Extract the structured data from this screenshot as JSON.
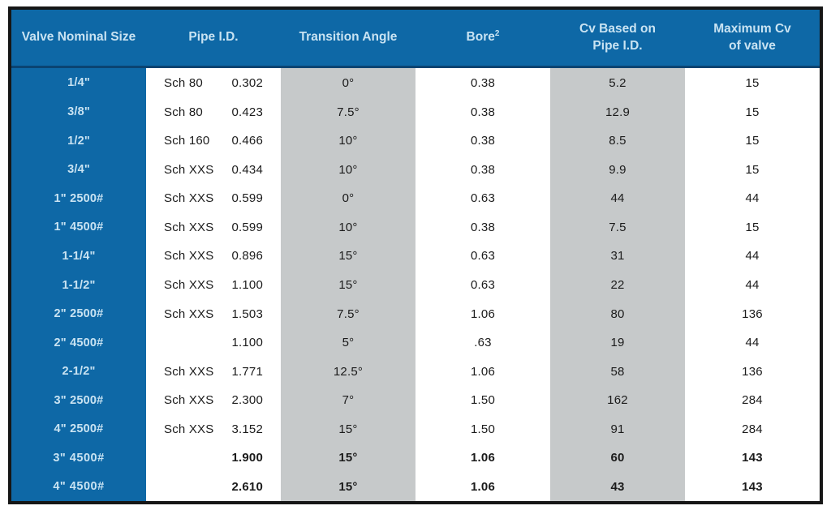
{
  "colors": {
    "blue": "#0e68a6",
    "blue_dark": "#0a4472",
    "header_text": "#c9e3f2",
    "gray": "#c6c9ca",
    "ink": "#1b1b1b",
    "border_black": "#161616",
    "page_bg": "#ffffff"
  },
  "table": {
    "headers": {
      "valve_nominal_size": "Valve Nominal Size",
      "pipe_id": "Pipe I.D.",
      "transition_angle": "Transition Angle",
      "bore_label": "Bore",
      "bore_sup": "2",
      "cv_based_line1": "Cv Based on",
      "cv_based_line2": "Pipe I.D.",
      "max_cv_line1": "Maximum Cv",
      "max_cv_line2": "of valve"
    },
    "rows": [
      {
        "size": "1/4\"",
        "sched": "Sch 80",
        "pipe_id": "0.302",
        "angle": "0°",
        "bore": "0.38",
        "cv_pipe": "5.2",
        "max_cv": "15"
      },
      {
        "size": "3/8\"",
        "sched": "Sch 80",
        "pipe_id": "0.423",
        "angle": "7.5°",
        "bore": "0.38",
        "cv_pipe": "12.9",
        "max_cv": "15"
      },
      {
        "size": "1/2\"",
        "sched": "Sch 160",
        "pipe_id": "0.466",
        "angle": "10°",
        "bore": "0.38",
        "cv_pipe": "8.5",
        "max_cv": "15"
      },
      {
        "size": "3/4\"",
        "sched": "Sch XXS",
        "pipe_id": "0.434",
        "angle": "10°",
        "bore": "0.38",
        "cv_pipe": "9.9",
        "max_cv": "15"
      },
      {
        "size": "1\" 2500#",
        "sched": "Sch XXS",
        "pipe_id": "0.599",
        "angle": "0°",
        "bore": "0.63",
        "cv_pipe": "44",
        "max_cv": "44"
      },
      {
        "size": "1\" 4500#",
        "sched": "Sch XXS",
        "pipe_id": "0.599",
        "angle": "10°",
        "bore": "0.38",
        "cv_pipe": "7.5",
        "max_cv": "15"
      },
      {
        "size": "1-1/4\"",
        "sched": "Sch XXS",
        "pipe_id": "0.896",
        "angle": "15°",
        "bore": "0.63",
        "cv_pipe": "31",
        "max_cv": "44"
      },
      {
        "size": "1-1/2\"",
        "sched": "Sch XXS",
        "pipe_id": "1.100",
        "angle": "15°",
        "bore": "0.63",
        "cv_pipe": "22",
        "max_cv": "44"
      },
      {
        "size": "2\" 2500#",
        "sched": "Sch XXS",
        "pipe_id": "1.503",
        "angle": "7.5°",
        "bore": "1.06",
        "cv_pipe": "80",
        "max_cv": "136"
      },
      {
        "size": "2\" 4500#",
        "sched": "",
        "pipe_id": "1.100",
        "angle": "5°",
        "bore": ".63",
        "cv_pipe": "19",
        "max_cv": "44"
      },
      {
        "size": "2-1/2\"",
        "sched": "Sch XXS",
        "pipe_id": "1.771",
        "angle": "12.5°",
        "bore": "1.06",
        "cv_pipe": "58",
        "max_cv": "136"
      },
      {
        "size": "3\" 2500#",
        "sched": "Sch XXS",
        "pipe_id": "2.300",
        "angle": "7°",
        "bore": "1.50",
        "cv_pipe": "162",
        "max_cv": "284"
      },
      {
        "size": "4\" 2500#",
        "sched": "Sch XXS",
        "pipe_id": "3.152",
        "angle": "15°",
        "bore": "1.50",
        "cv_pipe": "91",
        "max_cv": "284"
      },
      {
        "size": "3\" 4500#",
        "sched": "",
        "pipe_id": "1.900",
        "angle": "15°",
        "bore": "1.06",
        "cv_pipe": "60",
        "max_cv": "143"
      },
      {
        "size": "4\" 4500#",
        "sched": "",
        "pipe_id": "2.610",
        "angle": "15°",
        "bore": "1.06",
        "cv_pipe": "43",
        "max_cv": "143"
      }
    ]
  }
}
